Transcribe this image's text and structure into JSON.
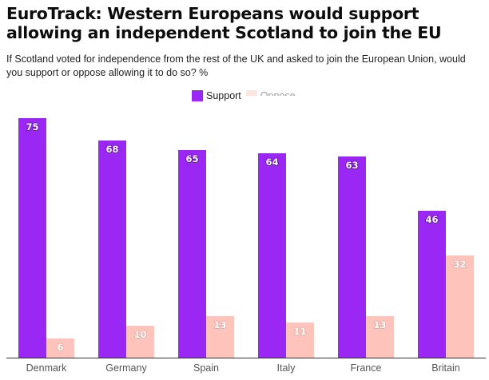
{
  "title": "EuroTrack: Western Europeans would support allowing an independent Scotland to join the EU",
  "subtitle": "If Scotland voted for independence from the rest of the UK and asked to join the European Union, would you support or oppose allowing it to do so? %",
  "legend": {
    "support_label": "Support",
    "oppose_label": "Oppose"
  },
  "colors": {
    "support": "#9b27f5",
    "oppose": "#fec3ba",
    "axis": "#333333"
  },
  "chart_data": {
    "type": "bar",
    "title": "EuroTrack: Western Europeans would support allowing an independent Scotland to join the EU",
    "xlabel": "",
    "ylabel": "%",
    "ylim": [
      0,
      75
    ],
    "categories": [
      "Denmark",
      "Germany",
      "Spain",
      "Italy",
      "France",
      "Britain"
    ],
    "series": [
      {
        "name": "Support",
        "values": [
          75,
          68,
          65,
          64,
          63,
          46
        ]
      },
      {
        "name": "Oppose",
        "values": [
          6,
          10,
          13,
          11,
          13,
          32
        ]
      }
    ],
    "legend_position": "top-center",
    "grid": false
  }
}
